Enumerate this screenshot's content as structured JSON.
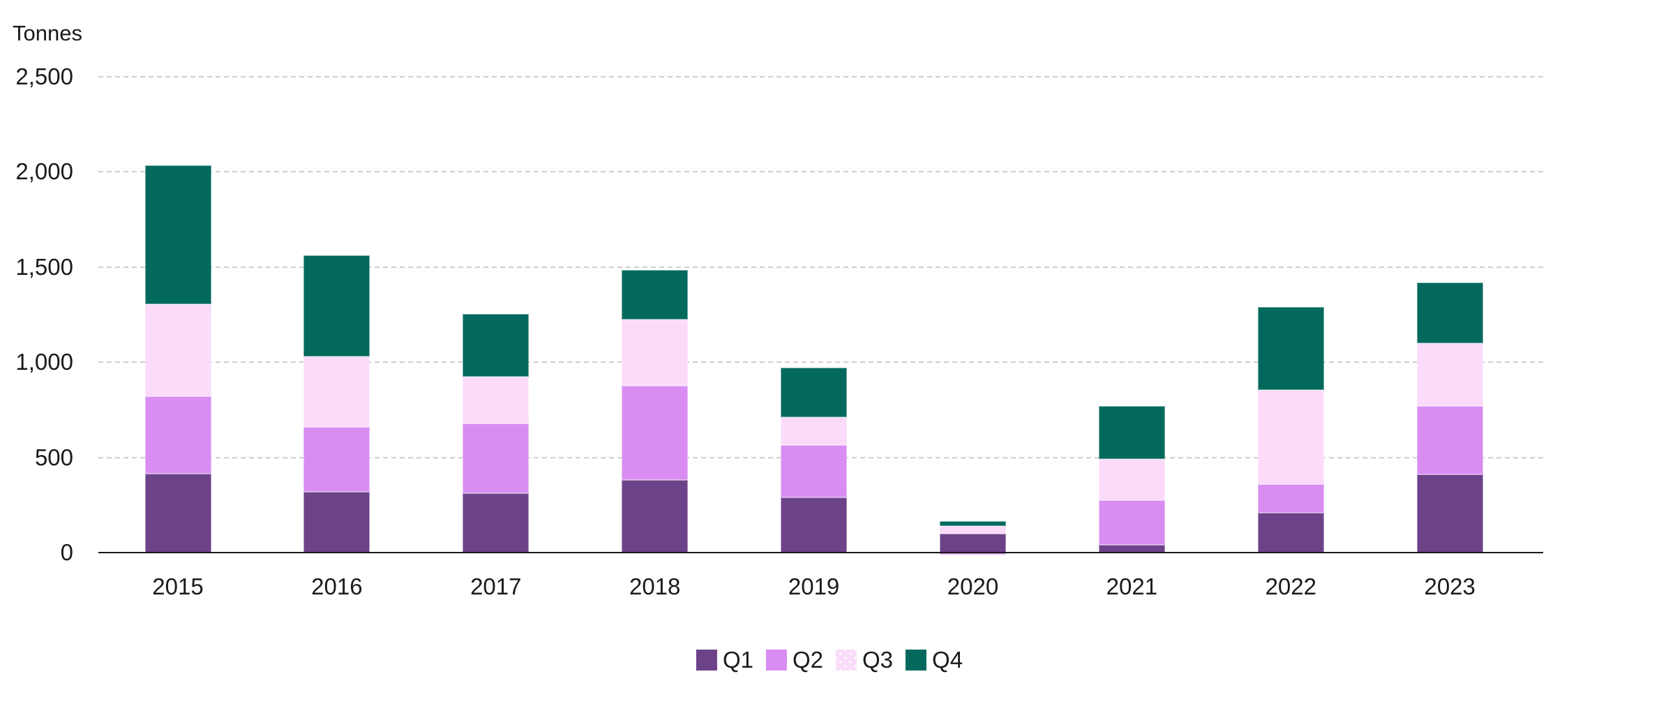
{
  "chart_data": {
    "type": "bar",
    "stacked": true,
    "title": "",
    "ylabel": "Tonnes",
    "xlabel": "",
    "ylim": [
      0,
      2500
    ],
    "ytick_values": [
      0,
      500,
      1000,
      1500,
      2000,
      2500
    ],
    "ytick_labels": [
      "0",
      "500",
      "1,000",
      "1,500",
      "2,000",
      "2,500"
    ],
    "grid": "horizontal-dashed",
    "legend_position": "bottom-center",
    "categories": [
      "2015",
      "2016",
      "2017",
      "2018",
      "2019",
      "2020",
      "2021",
      "2022",
      "2023"
    ],
    "series": [
      {
        "name": "Q1",
        "color": "#6c4288",
        "pattern": "solid",
        "values": [
          415,
          320,
          310,
          380,
          290,
          100,
          40,
          210,
          410
        ]
      },
      {
        "name": "Q2",
        "color": "#d98df3",
        "pattern": "solid",
        "values": [
          405,
          340,
          370,
          495,
          275,
          -10,
          235,
          150,
          360
        ]
      },
      {
        "name": "Q3",
        "color": "#fbdbf9",
        "pattern": "dots",
        "values": [
          485,
          370,
          245,
          350,
          145,
          40,
          215,
          495,
          330
        ]
      },
      {
        "name": "Q4",
        "color": "#03695d",
        "pattern": "solid",
        "values": [
          730,
          530,
          330,
          260,
          260,
          25,
          280,
          435,
          320
        ]
      }
    ],
    "totals_visible_top": [
      2035,
      1560,
      1255,
      1485,
      970,
      165,
      770,
      1290,
      1420
    ]
  },
  "style": {
    "gridline_color": "#cfcfcf",
    "axis_line_color": "#1a1a1a",
    "text_color": "#1a1a1a",
    "background_color": "#ffffff"
  }
}
